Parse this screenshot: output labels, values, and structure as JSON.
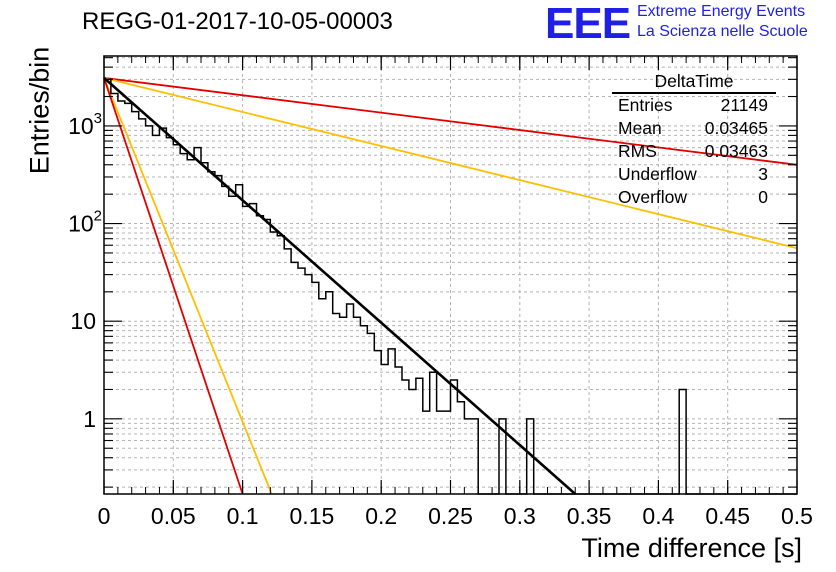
{
  "header": {
    "title": "REGG-01-2017-10-05-00003",
    "logo_text": "EEE",
    "logo_line1": "Extreme Energy Events",
    "logo_line2": "La Scienza nelle Scuole"
  },
  "stats_box": {
    "title": "DeltaTime",
    "rows": [
      {
        "label": "Entries",
        "value": "21149"
      },
      {
        "label": "Mean",
        "value": "0.03465"
      },
      {
        "label": "RMS",
        "value": "0.03463"
      },
      {
        "label": "Underflow",
        "value": "3"
      },
      {
        "label": "Overflow",
        "value": "0"
      }
    ]
  },
  "colors": {
    "histogram": "#000000",
    "fit": "#000000",
    "red_lines": "#e00000",
    "orange_lines": "#ffbf00",
    "grid": "#b4b4b4",
    "logo": "#1f1fe6"
  },
  "chart_data": {
    "type": "line",
    "xlabel": "Time difference [s]",
    "ylabel": "Entries/bin",
    "xlim": [
      0,
      0.5
    ],
    "ylim": [
      0.17,
      5200
    ],
    "yscale": "log",
    "grid": true,
    "x_ticks": [
      "0",
      "0.05",
      "0.1",
      "0.15",
      "0.2",
      "0.25",
      "0.3",
      "0.35",
      "0.4",
      "0.45",
      "0.5"
    ],
    "y_ticks": [
      "1",
      "10",
      "10^2",
      "10^3"
    ],
    "histogram": {
      "bin_width": 0.005,
      "bin_start": 0,
      "values": [
        3000,
        2150,
        1800,
        1700,
        1400,
        1180,
        1000,
        800,
        950,
        760,
        640,
        520,
        450,
        600,
        420,
        340,
        310,
        240,
        190,
        250,
        150,
        160,
        120,
        110,
        82,
        75,
        55,
        40,
        35,
        30,
        25,
        17,
        20,
        12,
        11,
        15,
        11,
        9,
        7.5,
        5,
        3.6,
        5.2,
        3.4,
        2.5,
        2.0,
        2.6,
        1.2,
        3.0,
        1.2,
        1.2,
        2.5,
        1.5,
        1.0,
        1.0,
        0,
        0,
        0,
        1.0,
        0,
        0,
        0,
        1.0,
        0,
        0,
        0,
        0,
        0,
        0,
        0,
        0,
        0,
        0,
        0,
        0,
        0,
        0,
        0,
        0,
        0,
        0,
        0,
        0,
        0,
        2.0,
        0,
        0,
        0,
        0,
        0,
        0,
        0,
        0,
        0,
        0,
        0,
        0,
        0,
        0,
        0,
        0
      ]
    },
    "series": [
      {
        "color": "black",
        "style": "fit",
        "x": [
          0,
          0.34
        ],
        "y": [
          3100,
          0.17
        ]
      },
      {
        "color": "red",
        "x": [
          0,
          0.5
        ],
        "y": [
          3100,
          400
        ]
      },
      {
        "color": "orange",
        "x": [
          0,
          0.5
        ],
        "y": [
          3100,
          56
        ]
      },
      {
        "color": "orange",
        "x": [
          0,
          0.121
        ],
        "y": [
          3100,
          0.17
        ]
      },
      {
        "color": "red",
        "x": [
          0,
          0.1
        ],
        "y": [
          3100,
          0.17
        ]
      }
    ]
  }
}
